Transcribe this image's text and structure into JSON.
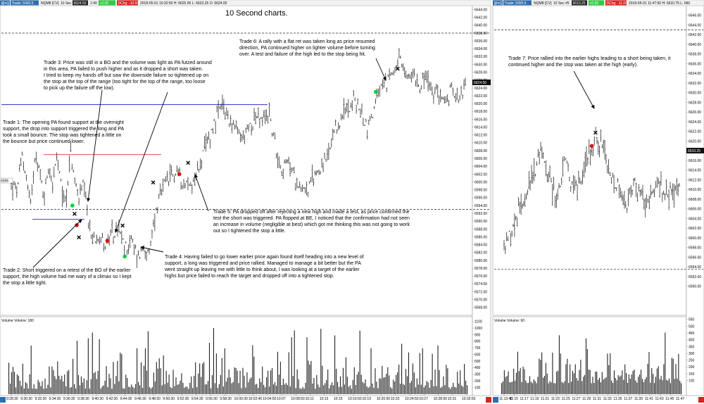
{
  "title": "10 Second charts.",
  "colors": {
    "buy": "#00cc44",
    "sell": "#e01010",
    "resistance": "#3030cc",
    "overnight": "#e03030",
    "header_blue": "#2f6fb0",
    "header_green": "#2ecc40",
    "header_red": "#e02020"
  },
  "left_header": {
    "tag": "@nQ",
    "tab_a": "Trade: 5/9/0.5",
    "symbol": "NQM8 [CV]",
    "interval": "10 Sec",
    "price_box": "6624.50",
    "num": "1:40",
    "chg": "+2.00",
    "dchg": "DChg: -10.50",
    "info": "2018-05-01 10:32:50  H: 6625.00  L: 6623.25  O: 6624.00"
  },
  "right_header": {
    "tag": "@nQ",
    "tab_a": "Trade: 5/9/0.5",
    "symbol": "NQM8 [CV]",
    "interval": "10 Sec",
    "num": "#5",
    "price_box": "6610.25",
    "chg": "+0.50",
    "dchg": "DChg: -11.00",
    "info": "2018-05-01 11:47:00  H: 6610.75  L: 660"
  },
  "left_volume_label": "Volume  Volume: 180",
  "right_volume_label": "Volume  Volume: 60",
  "left_price_tag": "6624.50",
  "right_price_tag": "6610.25",
  "left_extra_tag": "6596",
  "annotations": {
    "trade1": [
      "Trade 1:  The opening PA found support at the overnight",
      "support, the drop into support triggered the long and PA",
      "took a small bounce.  The stop was tightened a little on",
      "the bounce but price continued lower."
    ],
    "trade2": [
      "Trade 2:  Short triggered on a retest of the BO of the earlier",
      "support, the high volume had me wary of a climax so I kept",
      "the stop a little tight."
    ],
    "trade3": [
      "Trade 3:  Price was still in a BO and the volume was light as PA futzed around",
      "in this area, PA failed to push higher and as it dropped a short was taken.",
      "I tried to keep my hands off but saw the downside failure so tightened up on",
      "the stop at the top of the range (too tight for the top of the range, too loose",
      "to pick up the failure off the low)."
    ],
    "trade4": [
      "Trade 4:  Having failed to go lower earlier price again found itself heading into a new level of",
      "support, a long was triggered and price rallied.  Managed to manage a bit better but the PA",
      "went straight up leaving me with little to think about, I was looking at a target of the earlier",
      "highs but price failed to reach the target and dropped off into a tightened stop."
    ],
    "trade5": [
      "Trade 5:  PA dropped off after rejecting a new high and made a test, as price confirmed the",
      "test the short was triggered.  PA flopped at BE, I noticed that the confirmation had not seen",
      "an increase in volume (negligible at best) which got me thinking this was not going to work",
      "out so I tightened the stop a little."
    ],
    "trade6": [
      "Trade 6:  A rally with a flat ret was taken long as price resumed",
      "direction, PA continued higher on lighter volume before turning",
      "over.  A test and failure of the high led to the stop being hit."
    ],
    "trade7": [
      "Trade 7:  Price rallied into the earlier highs leading to a short being taken, it",
      "continued higher and the stop was taken at the high (early)."
    ]
  },
  "chart_data": [
    {
      "type": "line",
      "name": "NQM8 10 Sec (left panel)",
      "ylim": [
        6566,
        6645
      ],
      "y_ticks": [
        6566.0,
        6568.0,
        6570.0,
        6572.0,
        6574.0,
        6576.0,
        6578.0,
        6580.0,
        6582.0,
        6584.0,
        6586.0,
        6588.0,
        6590.0,
        6592.0,
        6594.0,
        6596.0,
        6598.0,
        6600.0,
        6602.0,
        6604.0,
        6606.0,
        6608.0,
        6610.0,
        6612.0,
        6614.0,
        6616.0,
        6618.0,
        6620.0,
        6622.0,
        6624.0,
        6626.0,
        6628.0,
        6630.0,
        6632.0,
        6634.0,
        6636.0,
        6638.0,
        6640.0,
        6642.0,
        6644.0
      ],
      "x_ticks": [
        "9:28:30",
        "9:30:30",
        "9:32:30",
        "9:34:30",
        "9:36:30",
        "9:38:30",
        "9:40:30",
        "9:42:30",
        "9:44:30",
        "9:46:30",
        "9:48:30",
        "9:50:30",
        "9:52:30",
        "9:54:30",
        "9:56:30",
        "9:58:30",
        "10:00:30",
        "10:02:40",
        "10:04:50",
        "10:07",
        "10:08:50",
        "10:11",
        "10:13",
        "10:15",
        "10:16:50",
        "10:19",
        "10:20:50",
        "10:23",
        "10:24:50",
        "10:27",
        "10:28:50",
        "10:31",
        "10:32:50"
      ],
      "price_path": [
        [
          0,
          6599
        ],
        [
          3,
          6598
        ],
        [
          5,
          6607
        ],
        [
          7,
          6601
        ],
        [
          9,
          6594
        ],
        [
          11,
          6609
        ],
        [
          13,
          6602
        ],
        [
          15,
          6596
        ],
        [
          17,
          6604
        ],
        [
          19,
          6600
        ],
        [
          21,
          6606
        ],
        [
          23,
          6598
        ],
        [
          25,
          6595
        ],
        [
          27,
          6608
        ],
        [
          29,
          6600
        ],
        [
          31,
          6596
        ],
        [
          33,
          6599
        ],
        [
          35,
          6591
        ],
        [
          37,
          6585
        ],
        [
          40,
          6587
        ],
        [
          43,
          6584
        ],
        [
          46,
          6586
        ],
        [
          49,
          6588
        ],
        [
          52,
          6583
        ],
        [
          55,
          6585
        ],
        [
          58,
          6581
        ],
        [
          61,
          6584
        ],
        [
          63,
          6580
        ],
        [
          65,
          6589
        ],
        [
          67,
          6594
        ],
        [
          70,
          6599
        ],
        [
          73,
          6601
        ],
        [
          76,
          6603
        ],
        [
          79,
          6600
        ],
        [
          82,
          6599
        ],
        [
          85,
          6602
        ],
        [
          88,
          6607
        ],
        [
          91,
          6612
        ],
        [
          94,
          6617
        ],
        [
          97,
          6619
        ],
        [
          100,
          6616
        ],
        [
          103,
          6613
        ],
        [
          106,
          6611
        ],
        [
          109,
          6614
        ],
        [
          112,
          6617
        ],
        [
          115,
          6615
        ],
        [
          118,
          6618
        ],
        [
          121,
          6609
        ],
        [
          124,
          6603
        ],
        [
          127,
          6605
        ],
        [
          130,
          6601
        ],
        [
          133,
          6599
        ],
        [
          136,
          6598
        ],
        [
          139,
          6602
        ],
        [
          142,
          6604
        ],
        [
          145,
          6606
        ],
        [
          148,
          6612
        ],
        [
          151,
          6616
        ],
        [
          154,
          6619
        ],
        [
          157,
          6621
        ],
        [
          160,
          6618
        ],
        [
          163,
          6614
        ],
        [
          166,
          6618
        ],
        [
          169,
          6624
        ],
        [
          172,
          6625
        ],
        [
          175,
          6629
        ],
        [
          178,
          6631
        ],
        [
          181,
          6626
        ],
        [
          184,
          6628
        ],
        [
          187,
          6625
        ],
        [
          190,
          6627
        ],
        [
          193,
          6622
        ],
        [
          196,
          6623
        ],
        [
          199,
          6620
        ],
        [
          202,
          6624
        ],
        [
          205,
          6622
        ],
        [
          208,
          6624.5
        ]
      ],
      "levels": [
        {
          "label": "overnight resistance",
          "value": 6619.75,
          "style": "blue"
        },
        {
          "label": "opening high",
          "value": 6607,
          "style": "red"
        },
        {
          "label": "overnight support",
          "value": 6590.5,
          "style": "blue"
        },
        {
          "label": "dashed upper",
          "value": 6638,
          "style": "dashed"
        },
        {
          "label": "dashed lower",
          "value": 6593,
          "style": "dashed"
        }
      ],
      "trades": [
        {
          "trade": "Trade 1",
          "entry": {
            "t": 28,
            "price": 6594,
            "dir": "long"
          },
          "exit": {
            "t": 29,
            "price": 6591
          }
        },
        {
          "trade": "Trade 2",
          "entry": {
            "t": 30,
            "price": 6589,
            "dir": "short"
          },
          "exit": {
            "t": 31,
            "price": 6585
          }
        },
        {
          "trade": "Trade 3",
          "entry": {
            "t": 44,
            "price": 6585,
            "dir": "short"
          },
          "exit": {
            "t": 51,
            "price": 6588
          }
        },
        {
          "trade": "Trade 4",
          "entry": {
            "t": 52,
            "price": 6581,
            "dir": "long"
          },
          "exit": {
            "t": 65,
            "price": 6599
          }
        },
        {
          "trade": "Trade 5",
          "entry": {
            "t": 77,
            "price": 6602,
            "dir": "short"
          },
          "exit": {
            "t": 81,
            "price": 6604
          }
        },
        {
          "trade": "Trade 6",
          "entry": {
            "t": 167,
            "price": 6623,
            "dir": "long"
          },
          "exit": {
            "t": 177,
            "price": 6628
          }
        }
      ],
      "volume": {
        "ylim": [
          0,
          1150
        ],
        "y_ticks": [
          100,
          200,
          300,
          400,
          500,
          600,
          700,
          800,
          900,
          1000,
          1100
        ]
      }
    },
    {
      "type": "line",
      "name": "NQM8 10 Sec (right panel)",
      "ylim": [
        6584,
        6648
      ],
      "y_ticks": [
        6590,
        6592,
        6594,
        6596,
        6598,
        6600,
        6602,
        6604,
        6606,
        6608,
        6610,
        6612,
        6614,
        6616,
        6618,
        6620,
        6622,
        6624,
        6626,
        6628,
        6630,
        6632,
        6634,
        6636,
        6638,
        6640,
        6642,
        6644,
        6646
      ],
      "x_ticks": [
        "11:13:40",
        "11:15",
        "11:17",
        "11:19",
        "11:21",
        "11:23",
        "11:25",
        "11:27",
        "11:29",
        "11:31",
        "11:33",
        "11:35",
        "11:37",
        "11:39",
        "11:41",
        "11:43",
        "11:45",
        "11:47"
      ],
      "price_path": [
        [
          0,
          6598
        ],
        [
          4,
          6601
        ],
        [
          8,
          6606
        ],
        [
          12,
          6610
        ],
        [
          16,
          6614
        ],
        [
          20,
          6618
        ],
        [
          24,
          6612
        ],
        [
          28,
          6608
        ],
        [
          32,
          6616
        ],
        [
          36,
          6610
        ],
        [
          40,
          6612
        ],
        [
          44,
          6617
        ],
        [
          48,
          6621
        ],
        [
          52,
          6618
        ],
        [
          56,
          6612
        ],
        [
          60,
          6610
        ],
        [
          64,
          6606
        ],
        [
          68,
          6611
        ],
        [
          72,
          6609
        ],
        [
          76,
          6606
        ],
        [
          80,
          6612
        ],
        [
          84,
          6608
        ],
        [
          88,
          6610
        ],
        [
          92,
          6610.25
        ]
      ],
      "levels": [
        {
          "label": "dashed upper",
          "value": 6643,
          "style": "dashed"
        },
        {
          "label": "dashed lower",
          "value": 6593.5,
          "style": "dashed"
        }
      ],
      "trades": [
        {
          "trade": "Trade 7",
          "entry": {
            "t": 46,
            "price": 6619,
            "dir": "short"
          },
          "exit": {
            "t": 48,
            "price": 6621
          }
        }
      ],
      "volume": {
        "ylim": [
          0,
          560
        ],
        "y_ticks": [
          100,
          150,
          200,
          250,
          300,
          350,
          400,
          450,
          500,
          550
        ]
      }
    }
  ]
}
